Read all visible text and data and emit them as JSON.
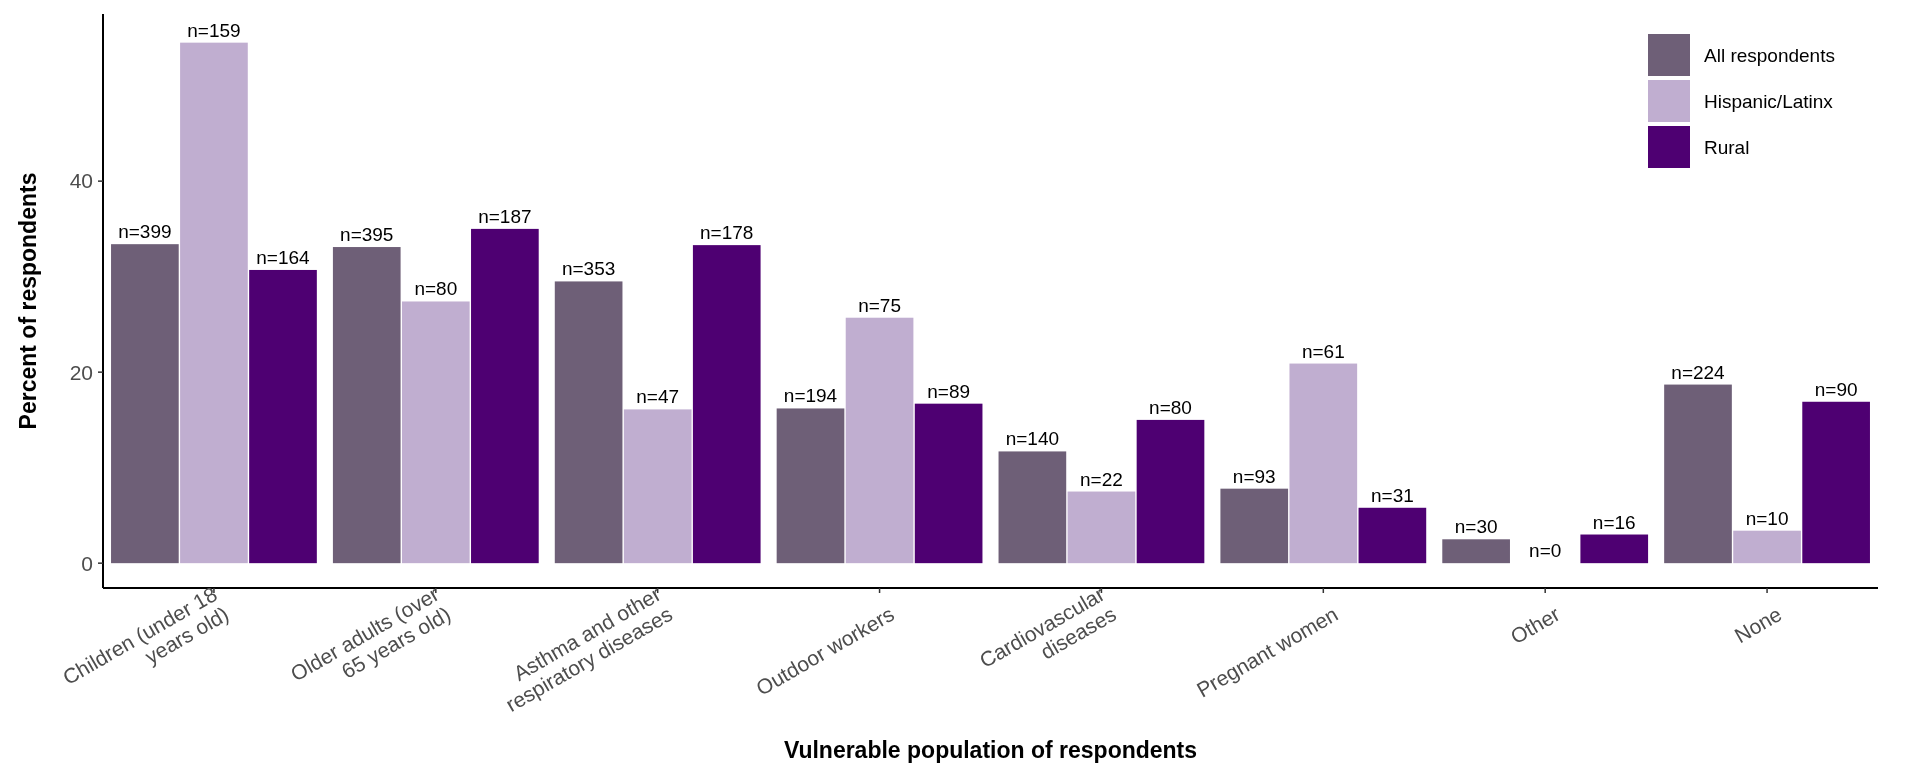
{
  "chart_data": {
    "type": "bar",
    "xlabel": "Vulnerable population of respondents",
    "ylabel": "Percent of respondents",
    "categories": [
      "Children (under 18 years old)",
      "Older adults (over 65 years old)",
      "Asthma and other respiratory diseases",
      "Outdoor workers",
      "Cardiovascular diseases",
      "Pregnant women",
      "Other",
      "None"
    ],
    "series": [
      {
        "name": "All respondents",
        "color": "#6e5f77",
        "values": [
          33.4,
          33.1,
          29.5,
          16.2,
          11.7,
          7.8,
          2.5,
          18.7
        ]
      },
      {
        "name": "Hispanic/Latinx",
        "color": "#c0aed0",
        "values": [
          54.5,
          27.4,
          16.1,
          25.7,
          7.5,
          20.9,
          0,
          3.4
        ]
      },
      {
        "name": "Rural",
        "color": "#4e0072",
        "values": [
          30.7,
          35.0,
          33.3,
          16.7,
          15.0,
          5.8,
          3.0,
          16.9
        ]
      }
    ],
    "annotations": [
      "n=399",
      "n=159",
      "n=164",
      "n=395",
      "n=80",
      "n=187",
      "n=353",
      "n=47",
      "n=178",
      "n=194",
      "n=75",
      "n=89",
      "n=140",
      "n=22",
      "n=80",
      "n=93",
      "n=61",
      "n=31",
      "n=30",
      "n=0",
      "n=16",
      "n=224",
      "n=10",
      "n=90"
    ],
    "ylim": [
      -2.6,
      57.5
    ],
    "yticks": [
      0,
      20,
      40
    ],
    "grid": false,
    "legend": "top right"
  }
}
